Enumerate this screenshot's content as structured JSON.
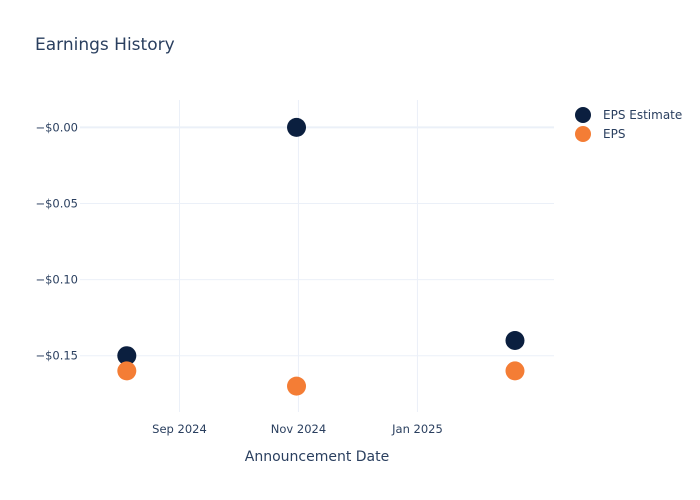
{
  "chart_data": {
    "type": "scatter",
    "title": "Earnings History",
    "xlabel": "Announcement Date",
    "ylabel": "",
    "x_ticks": [
      {
        "date": "2024-09-01",
        "label": "Sep 2024"
      },
      {
        "date": "2024-11-01",
        "label": "Nov 2024"
      },
      {
        "date": "2025-01-01",
        "label": "Jan 2025"
      }
    ],
    "y_ticks": [
      {
        "value": 0,
        "label": "−$0.00"
      },
      {
        "value": -0.05,
        "label": "−$0.05"
      },
      {
        "value": -0.1,
        "label": "−$0.10"
      },
      {
        "value": -0.15,
        "label": "−$0.15"
      }
    ],
    "xlim": [
      "2024-07-12",
      "2025-03-12"
    ],
    "ylim": [
      -0.187,
      0.018
    ],
    "grid": true,
    "legend_position": "top-right",
    "series": [
      {
        "name": "EPS Estimate",
        "color": "#0b1f3f",
        "points": [
          {
            "x": "2024-08-05",
            "y": -0.15
          },
          {
            "x": "2024-10-31",
            "y": 0.0
          },
          {
            "x": "2025-02-20",
            "y": -0.14
          }
        ]
      },
      {
        "name": "EPS",
        "color": "#f47d35",
        "points": [
          {
            "x": "2024-08-05",
            "y": -0.16
          },
          {
            "x": "2024-10-31",
            "y": -0.17
          },
          {
            "x": "2025-02-20",
            "y": -0.16
          }
        ]
      }
    ]
  }
}
